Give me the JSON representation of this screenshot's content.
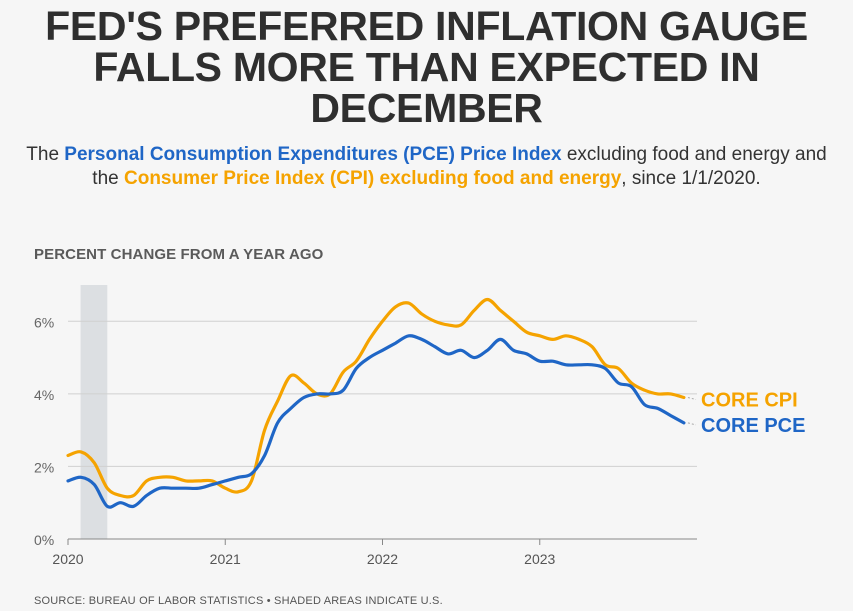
{
  "header": {
    "title_lines": [
      "FED'S PREFERRED INFLATION GAUGE",
      "FALLS MORE THAN EXPECTED IN",
      "DECEMBER"
    ],
    "subtitle": {
      "part1": "The ",
      "pce_name": "Personal Consumption Expenditures (PCE) Price Index",
      "part2": " excluding food and energy and the ",
      "cpi_name": "Consumer Price Index (CPI) excluding food and energy",
      "part3": ", since 1/1/2020."
    }
  },
  "footer": {
    "source": "SOURCE: BUREAU OF LABOR STATISTICS • SHADED AREAS INDICATE U.S."
  },
  "colors": {
    "cpi": "#f5a300",
    "pce": "#1f66c6",
    "grid": "#d0d0d0",
    "recession": "#dcdfe2"
  },
  "chart_data": {
    "type": "line",
    "ylabel": "PERCENT CHANGE FROM A YEAR AGO",
    "xlabel": "",
    "ylim": [
      0,
      7
    ],
    "xlim": [
      2020.0,
      2024.0
    ],
    "yticks": [
      0,
      2,
      4,
      6
    ],
    "ytick_labels": [
      "0%",
      "2%",
      "4%",
      "6%"
    ],
    "xticks": [
      2020,
      2021,
      2022,
      2023
    ],
    "xtick_labels": [
      "2020",
      "2021",
      "2022",
      "2023"
    ],
    "grid": true,
    "recession_shading": [
      [
        2020.08,
        2020.25
      ]
    ],
    "x": [
      2020.0,
      2020.083,
      2020.167,
      2020.25,
      2020.333,
      2020.417,
      2020.5,
      2020.583,
      2020.667,
      2020.75,
      2020.833,
      2020.917,
      2021.0,
      2021.083,
      2021.167,
      2021.25,
      2021.333,
      2021.417,
      2021.5,
      2021.583,
      2021.667,
      2021.75,
      2021.833,
      2021.917,
      2022.0,
      2022.083,
      2022.167,
      2022.25,
      2022.333,
      2022.417,
      2022.5,
      2022.583,
      2022.667,
      2022.75,
      2022.833,
      2022.917,
      2023.0,
      2023.083,
      2023.167,
      2023.25,
      2023.333,
      2023.417,
      2023.5,
      2023.583,
      2023.667,
      2023.75,
      2023.833,
      2023.917
    ],
    "series": [
      {
        "name": "CORE CPI",
        "label": "CORE CPI",
        "values": [
          2.3,
          2.4,
          2.1,
          1.4,
          1.2,
          1.2,
          1.6,
          1.7,
          1.7,
          1.6,
          1.6,
          1.6,
          1.4,
          1.3,
          1.6,
          3.0,
          3.8,
          4.5,
          4.3,
          4.0,
          4.0,
          4.6,
          4.9,
          5.5,
          6.0,
          6.4,
          6.5,
          6.2,
          6.0,
          5.9,
          5.9,
          6.3,
          6.6,
          6.3,
          6.0,
          5.7,
          5.6,
          5.5,
          5.6,
          5.5,
          5.3,
          4.8,
          4.7,
          4.3,
          4.1,
          4.0,
          4.0,
          3.9
        ]
      },
      {
        "name": "CORE PCE",
        "label": "CORE PCE",
        "values": [
          1.6,
          1.7,
          1.5,
          0.9,
          1.0,
          0.9,
          1.2,
          1.4,
          1.4,
          1.4,
          1.4,
          1.5,
          1.6,
          1.7,
          1.8,
          2.3,
          3.2,
          3.6,
          3.9,
          4.0,
          4.0,
          4.1,
          4.7,
          5.0,
          5.2,
          5.4,
          5.6,
          5.5,
          5.3,
          5.1,
          5.2,
          5.0,
          5.2,
          5.5,
          5.2,
          5.1,
          4.9,
          4.9,
          4.8,
          4.8,
          4.8,
          4.7,
          4.3,
          4.2,
          3.7,
          3.6,
          3.4,
          3.2
        ]
      }
    ]
  }
}
